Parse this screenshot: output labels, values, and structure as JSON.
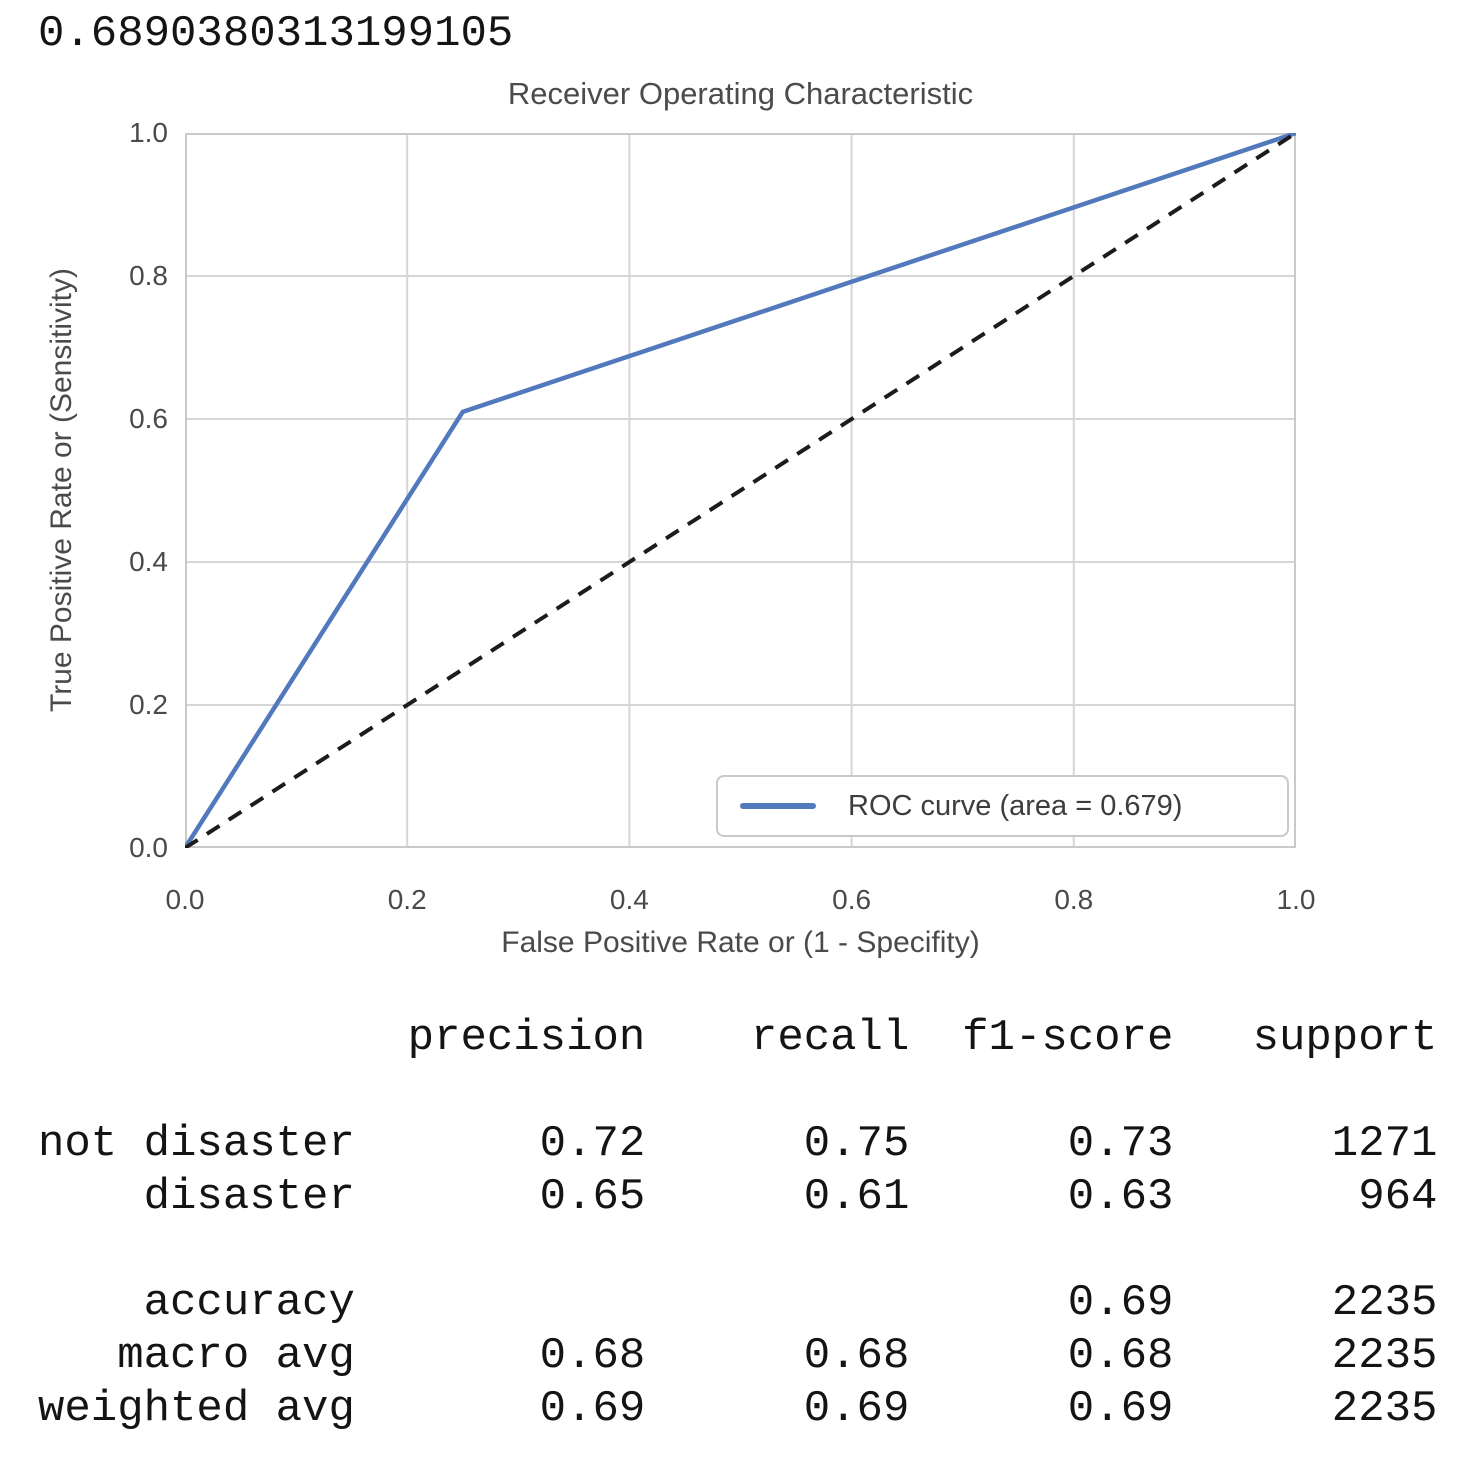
{
  "scalar_output": "0.6890380313199105",
  "chart": {
    "title": "Receiver Operating Characteristic",
    "xlabel": "False Positive Rate or (1 - Specifity)",
    "ylabel": "True Positive Rate or (Sensitivity)",
    "legend_label": "ROC curve (area = 0.679)",
    "xticks": [
      "0.0",
      "0.2",
      "0.4",
      "0.6",
      "0.8",
      "1.0"
    ],
    "yticks": [
      "0.0",
      "0.2",
      "0.4",
      "0.6",
      "0.8",
      "1.0"
    ],
    "colors": {
      "roc_line": "#5279bc",
      "diagonal": "#1c1c1c",
      "grid": "#d6d6d6",
      "spine": "#c9c9c9",
      "text": "#4a4a4a"
    }
  },
  "chart_data": {
    "type": "line",
    "title": "Receiver Operating Characteristic",
    "xlabel": "False Positive Rate or (1 - Specifity)",
    "ylabel": "True Positive Rate or (Sensitivity)",
    "xlim": [
      0.0,
      1.0
    ],
    "ylim": [
      0.0,
      1.0
    ],
    "grid": true,
    "legend_position": "lower right",
    "auc": 0.679,
    "series": [
      {
        "name": "ROC curve (area = 0.679)",
        "style": "solid",
        "color": "#5279bc",
        "x": [
          0.0,
          0.25,
          1.0
        ],
        "y": [
          0.0,
          0.61,
          1.0
        ]
      },
      {
        "name": "chance diagonal",
        "style": "dashed",
        "color": "#1c1c1c",
        "x": [
          0.0,
          1.0
        ],
        "y": [
          0.0,
          1.0
        ]
      }
    ]
  },
  "report": {
    "headers": [
      "precision",
      "recall",
      "f1-score",
      "support"
    ],
    "rows": [
      {
        "label": "not disaster",
        "precision": "0.72",
        "recall": "0.75",
        "f1": "0.73",
        "support": "1271"
      },
      {
        "label": "disaster",
        "precision": "0.65",
        "recall": "0.61",
        "f1": "0.63",
        "support": "964"
      },
      {
        "label": "accuracy",
        "precision": "",
        "recall": "",
        "f1": "0.69",
        "support": "2235"
      },
      {
        "label": "macro avg",
        "precision": "0.68",
        "recall": "0.68",
        "f1": "0.68",
        "support": "2235"
      },
      {
        "label": "weighted avg",
        "precision": "0.69",
        "recall": "0.69",
        "f1": "0.69",
        "support": "2235"
      }
    ]
  }
}
